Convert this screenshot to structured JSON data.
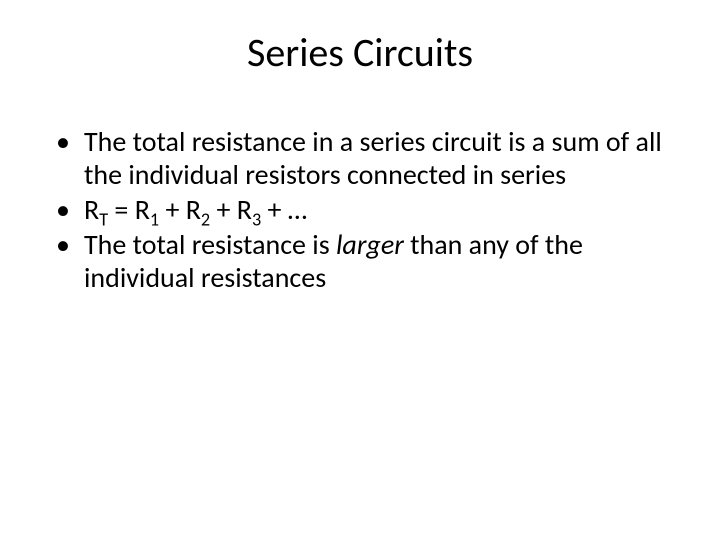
{
  "title": "Series Circuits",
  "bullets": {
    "b1": "The total resistance in a series circuit is a sum of all the individual resistors connected in series",
    "b2": {
      "R": "R",
      "T": "T",
      "eq": " = ",
      "one": "1",
      "plus1": " + ",
      "two": "2",
      "plus2": " + ",
      "three": "3",
      "plus3": " + …"
    },
    "b3_pre": "The total resistance is ",
    "b3_em": "larger",
    "b3_post": " than any of the individual resistances"
  }
}
